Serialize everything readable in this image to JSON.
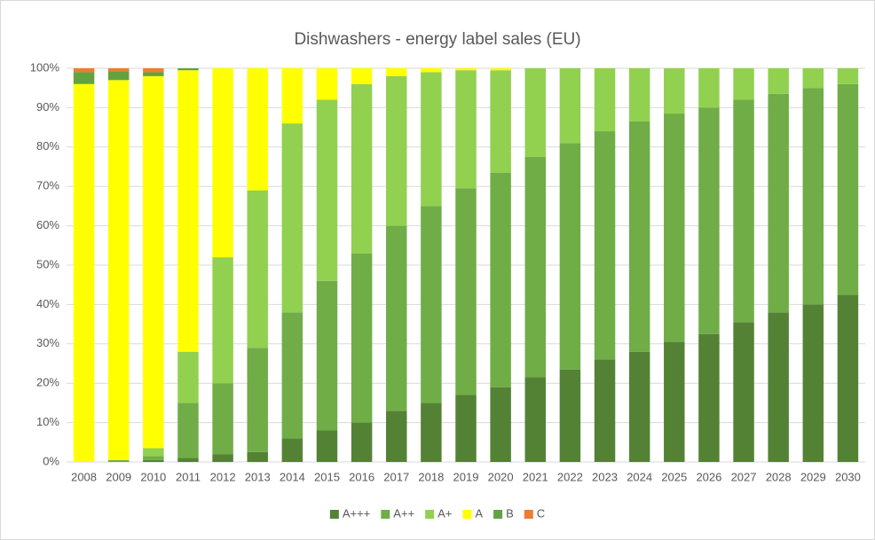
{
  "chart_data": {
    "type": "stacked_bar",
    "title": "Dishwashers - energy label sales (EU)",
    "categories": [
      "2008",
      "2009",
      "2010",
      "2011",
      "2012",
      "2013",
      "2014",
      "2015",
      "2016",
      "2017",
      "2018",
      "2019",
      "2020",
      "2021",
      "2022",
      "2023",
      "2024",
      "2025",
      "2026",
      "2027",
      "2028",
      "2029",
      "2030"
    ],
    "series": [
      {
        "name": "A+++",
        "color": "#548235",
        "values": [
          0,
          0,
          0.5,
          1,
          2,
          2.5,
          6,
          8,
          10,
          13,
          15,
          17,
          19,
          21.5,
          23.5,
          26,
          28,
          30.5,
          32.5,
          35.5,
          38,
          40,
          42.5
        ]
      },
      {
        "name": "A++",
        "color": "#70ad47",
        "values": [
          0,
          0.5,
          1,
          14,
          18,
          26.5,
          32,
          38,
          43,
          47,
          50,
          52.5,
          54.5,
          56,
          57.5,
          58,
          58.5,
          58,
          57.5,
          56.5,
          55.5,
          55,
          53.5
        ]
      },
      {
        "name": "A+",
        "color": "#92d050",
        "values": [
          0,
          0,
          2,
          13,
          32,
          40,
          48,
          46,
          43,
          38,
          34,
          30,
          26,
          22.5,
          19,
          16,
          13.5,
          11.5,
          10,
          8,
          6.5,
          5,
          4
        ]
      },
      {
        "name": "A",
        "color": "#ffff00",
        "values": [
          96,
          96.5,
          94.5,
          71.5,
          48,
          31,
          14,
          8,
          4,
          2,
          1,
          0.5,
          0.5,
          0,
          0,
          0,
          0,
          0,
          0,
          0,
          0,
          0,
          0
        ]
      },
      {
        "name": "B",
        "color": "#62a240",
        "values": [
          3,
          2.2,
          1,
          0.5,
          0,
          0,
          0,
          0,
          0,
          0,
          0,
          0,
          0,
          0,
          0,
          0,
          0,
          0,
          0,
          0,
          0,
          0,
          0
        ]
      },
      {
        "name": "C",
        "color": "#ed7d31",
        "values": [
          1,
          0.8,
          1,
          0,
          0,
          0,
          0,
          0,
          0,
          0,
          0,
          0,
          0,
          0,
          0,
          0,
          0,
          0,
          0,
          0,
          0,
          0,
          0
        ]
      }
    ],
    "ylim": [
      0,
      100
    ],
    "yticks": [
      {
        "value": 0,
        "label": "0%"
      },
      {
        "value": 10,
        "label": "10%"
      },
      {
        "value": 20,
        "label": "20%"
      },
      {
        "value": 30,
        "label": "30%"
      },
      {
        "value": 40,
        "label": "40%"
      },
      {
        "value": 50,
        "label": "50%"
      },
      {
        "value": 60,
        "label": "60%"
      },
      {
        "value": 70,
        "label": "70%"
      },
      {
        "value": 80,
        "label": "80%"
      },
      {
        "value": 90,
        "label": "90%"
      },
      {
        "value": 100,
        "label": "100%"
      }
    ],
    "grid": true,
    "legend": "bottom"
  }
}
